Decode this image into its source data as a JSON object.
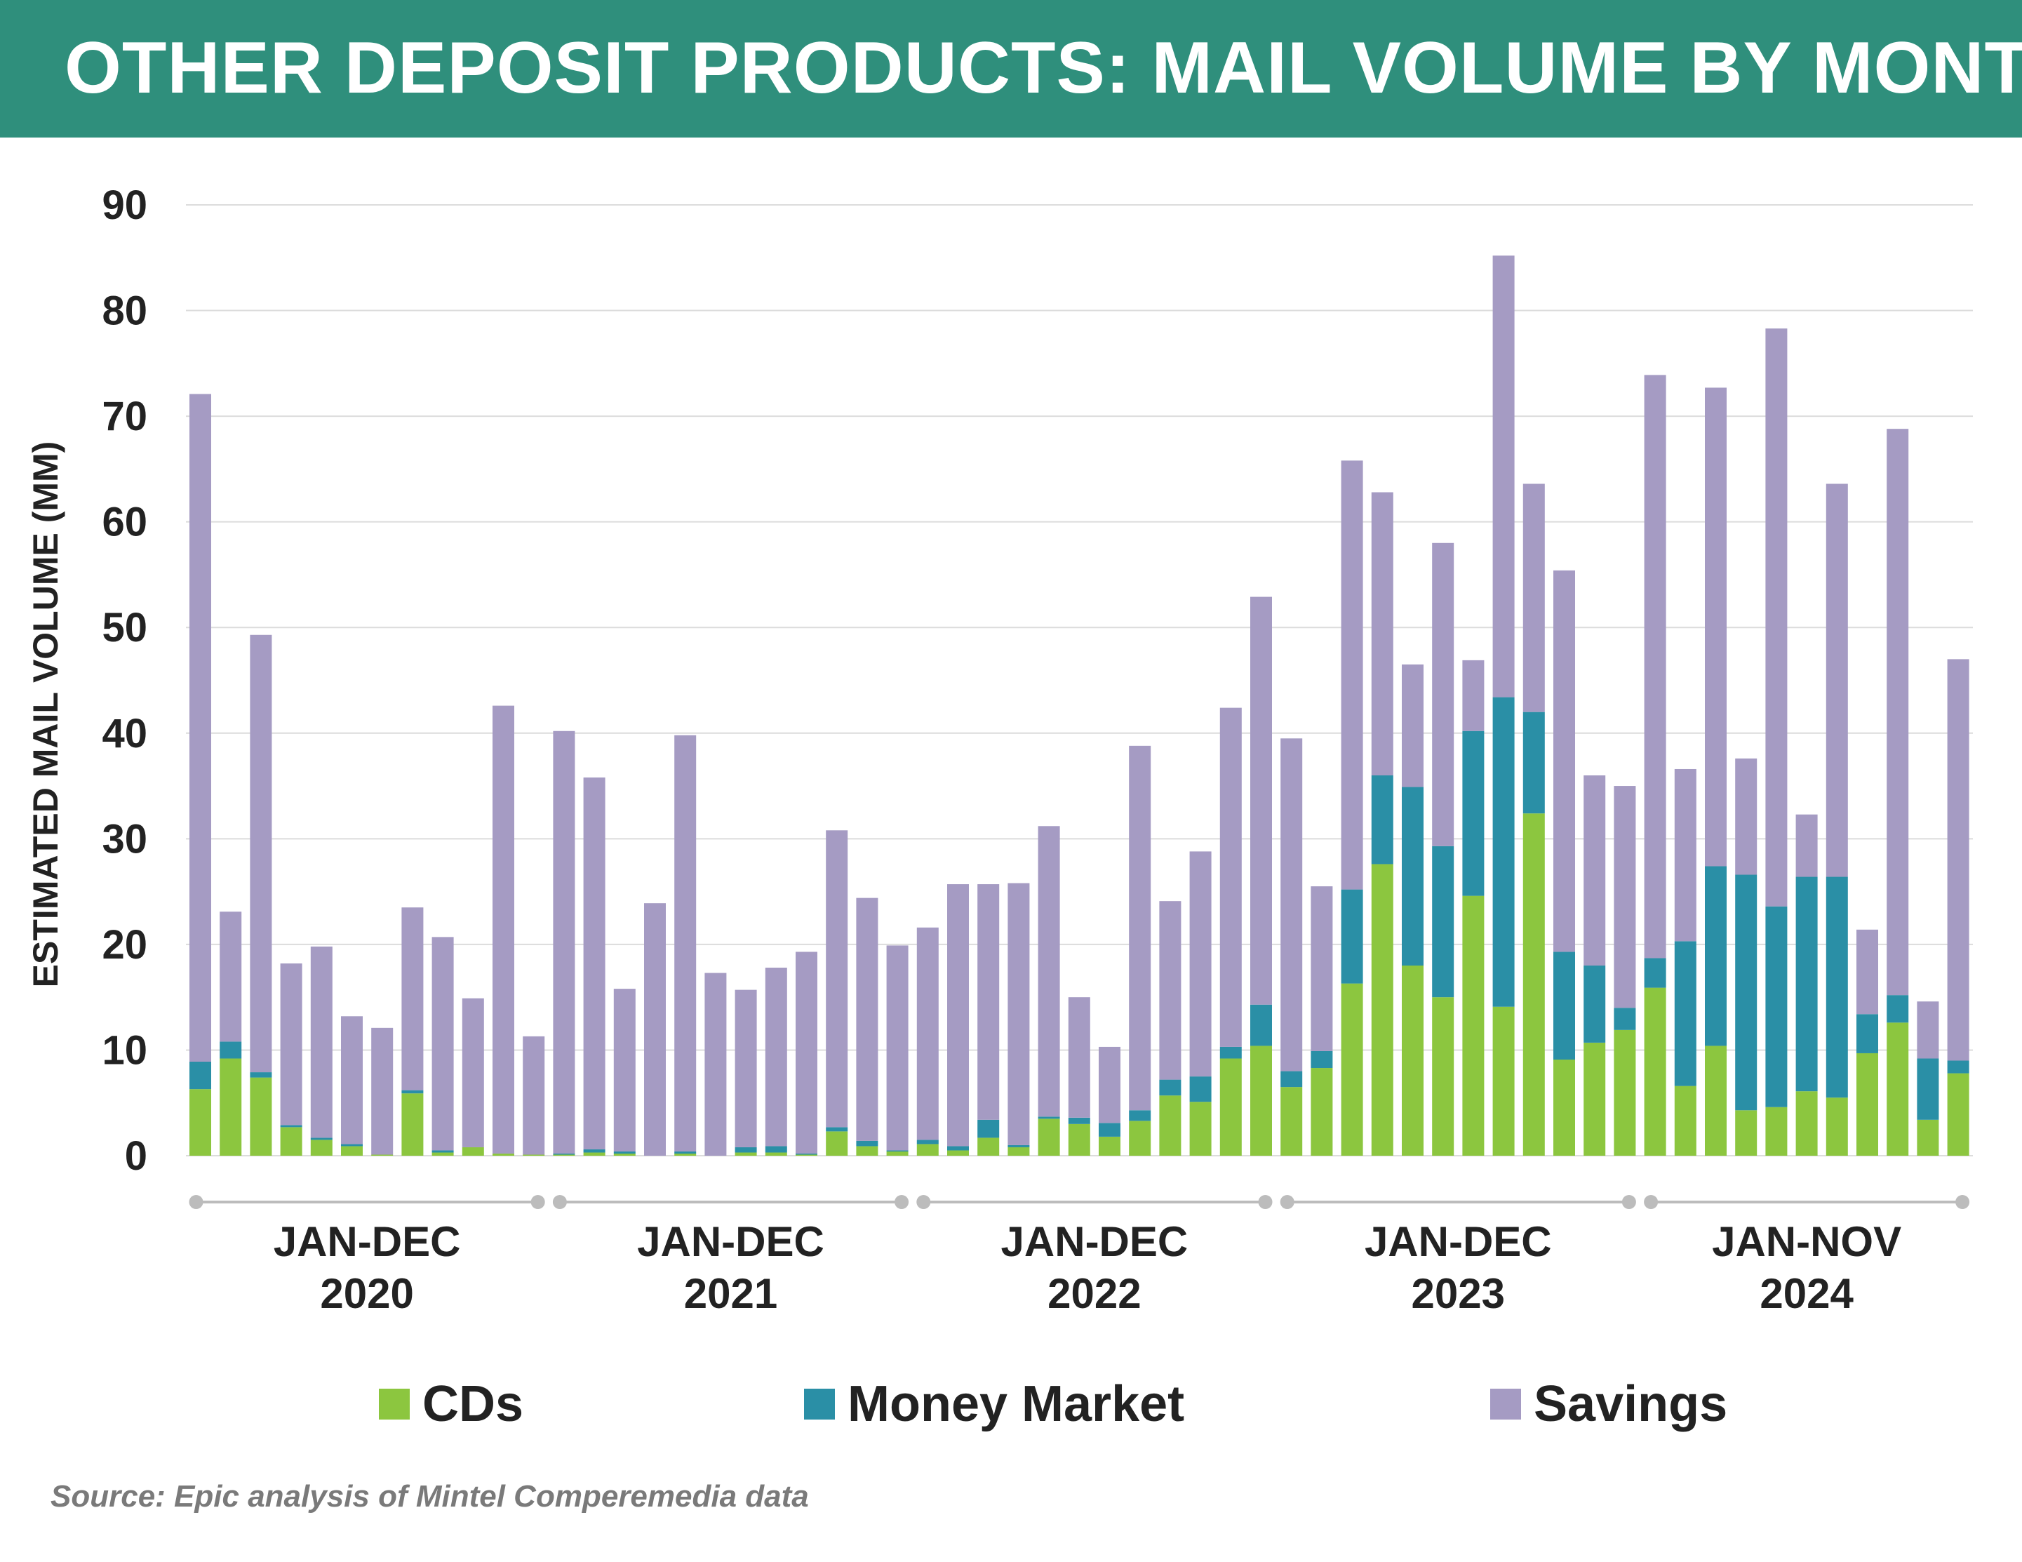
{
  "header": {
    "title": "OTHER DEPOSIT PRODUCTS: MAIL VOLUME BY MONTH"
  },
  "footer": {
    "source": "Source: Epic analysis of Mintel Comperemedia data"
  },
  "colors": {
    "banner": "#2f8f7c",
    "cds": "#8cc63f",
    "money_market": "#2a8fa6",
    "savings": "#a59bc3"
  },
  "chart_data": {
    "type": "bar",
    "stacked": true,
    "title": "",
    "xlabel": "",
    "ylabel": "ESTIMATED MAIL VOLUME (MM)",
    "ylim": [
      0,
      90
    ],
    "yticks": [
      "0",
      "10",
      "20",
      "30",
      "40",
      "50",
      "60",
      "70",
      "80",
      "90"
    ],
    "grid": true,
    "legend_position": "bottom",
    "groups": [
      {
        "label_line1": "JAN-DEC",
        "label_line2": "2020",
        "start": 0,
        "end": 11
      },
      {
        "label_line1": "JAN-DEC",
        "label_line2": "2021",
        "start": 12,
        "end": 23
      },
      {
        "label_line1": "JAN-DEC",
        "label_line2": "2022",
        "start": 24,
        "end": 35
      },
      {
        "label_line1": "JAN-DEC",
        "label_line2": "2023",
        "start": 36,
        "end": 47
      },
      {
        "label_line1": "JAN-NOV",
        "label_line2": "2024",
        "start": 48,
        "end": 58
      }
    ],
    "series": [
      {
        "name": "CDs",
        "color": "#8cc63f",
        "values": [
          6.3,
          9.2,
          7.4,
          2.7,
          1.5,
          0.9,
          0.1,
          5.9,
          0.3,
          0.8,
          0.2,
          0.1,
          0.1,
          0.3,
          0.2,
          0.0,
          0.2,
          0.0,
          0.3,
          0.3,
          0.1,
          2.3,
          0.9,
          0.4,
          1.1,
          0.5,
          1.7,
          0.8,
          3.5,
          3.0,
          1.8,
          3.3,
          5.7,
          5.1,
          9.2,
          10.4,
          6.5,
          8.3,
          16.3,
          27.6,
          18.0,
          15.0,
          24.6,
          14.1,
          32.4,
          9.1,
          10.7,
          11.9,
          15.9,
          6.6,
          10.4,
          4.3,
          4.6,
          6.1,
          5.5,
          9.7,
          12.6,
          3.4,
          7.8
        ]
      },
      {
        "name": "Money Market",
        "color": "#2a8fa6",
        "values": [
          2.6,
          1.6,
          0.5,
          0.2,
          0.2,
          0.2,
          0.0,
          0.3,
          0.2,
          0.0,
          0.0,
          0.0,
          0.1,
          0.3,
          0.2,
          0.0,
          0.2,
          0.0,
          0.5,
          0.6,
          0.1,
          0.4,
          0.5,
          0.1,
          0.4,
          0.4,
          1.7,
          0.2,
          0.2,
          0.6,
          1.3,
          1.0,
          1.5,
          2.4,
          1.1,
          3.9,
          1.5,
          1.6,
          8.9,
          8.4,
          16.9,
          14.3,
          15.6,
          29.3,
          9.6,
          10.2,
          7.3,
          2.1,
          2.8,
          13.7,
          17.0,
          22.3,
          19.0,
          20.3,
          20.9,
          3.7,
          2.6,
          5.8,
          1.2
        ]
      },
      {
        "name": "Savings",
        "color": "#a59bc3",
        "values": [
          63.2,
          12.3,
          41.4,
          15.3,
          18.1,
          12.1,
          12.0,
          17.3,
          20.2,
          14.1,
          42.4,
          11.2,
          40.0,
          35.2,
          15.4,
          23.9,
          39.4,
          17.3,
          14.9,
          16.9,
          19.1,
          28.1,
          23.0,
          19.4,
          20.1,
          24.8,
          22.3,
          24.8,
          27.5,
          11.4,
          7.2,
          34.5,
          16.9,
          21.3,
          32.1,
          38.6,
          31.5,
          15.6,
          40.6,
          26.8,
          11.6,
          28.7,
          6.7,
          41.8,
          21.6,
          36.1,
          18.0,
          21.0,
          55.2,
          16.3,
          45.3,
          11.0,
          54.7,
          5.9,
          37.2,
          8.0,
          53.6,
          5.4,
          38.0
        ]
      }
    ]
  }
}
